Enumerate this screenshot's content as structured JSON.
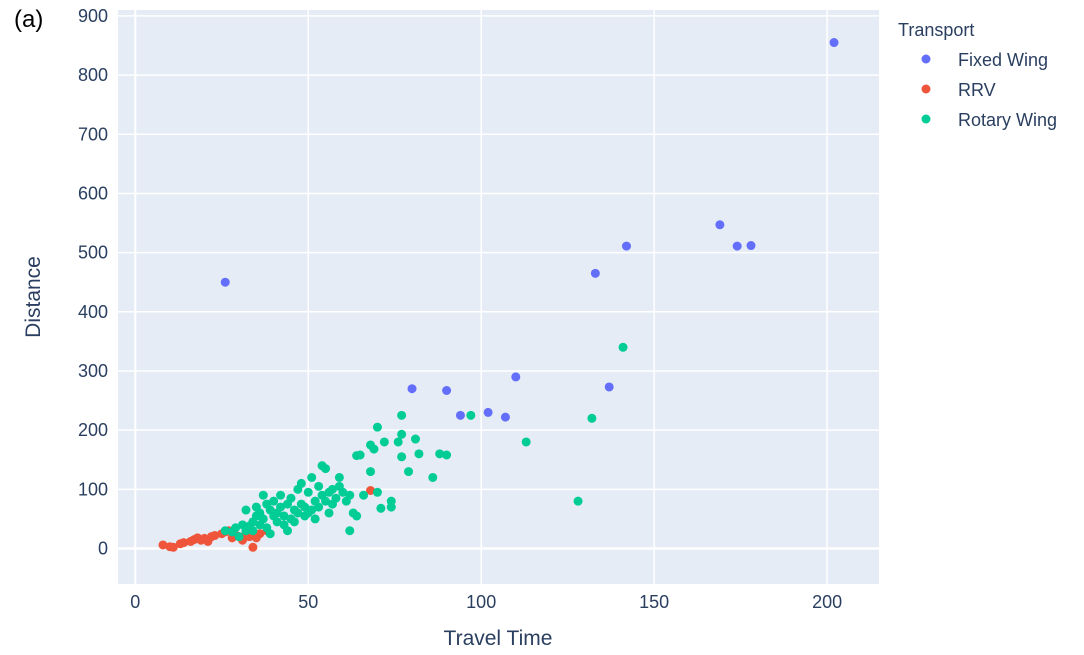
{
  "panel_label": "(a)",
  "chart_data": {
    "type": "scatter",
    "xlabel": "Travel Time",
    "ylabel": "Distance",
    "xlim": [
      -5,
      215
    ],
    "ylim": [
      -60,
      910
    ],
    "x_ticks": [
      0,
      50,
      100,
      150,
      200
    ],
    "y_ticks": [
      0,
      100,
      200,
      300,
      400,
      500,
      600,
      700,
      800,
      900
    ],
    "grid": true,
    "legend": {
      "title": "Transport",
      "position": "right"
    },
    "series": [
      {
        "name": "Fixed Wing",
        "color": "#636efa",
        "points": [
          [
            26,
            450
          ],
          [
            80,
            270
          ],
          [
            90,
            267
          ],
          [
            94,
            225
          ],
          [
            102,
            230
          ],
          [
            107,
            222
          ],
          [
            110,
            290
          ],
          [
            133,
            465
          ],
          [
            137,
            273
          ],
          [
            142,
            511
          ],
          [
            169,
            547
          ],
          [
            174,
            511
          ],
          [
            178,
            512
          ],
          [
            202,
            855
          ]
        ]
      },
      {
        "name": "RRV",
        "color": "#ef553b",
        "points": [
          [
            8,
            6
          ],
          [
            10,
            3
          ],
          [
            11,
            2
          ],
          [
            13,
            8
          ],
          [
            14,
            10
          ],
          [
            16,
            12
          ],
          [
            17,
            15
          ],
          [
            18,
            18
          ],
          [
            19,
            14
          ],
          [
            20,
            17
          ],
          [
            21,
            12
          ],
          [
            22,
            20
          ],
          [
            23,
            22
          ],
          [
            25,
            25
          ],
          [
            26,
            28
          ],
          [
            27,
            30
          ],
          [
            28,
            18
          ],
          [
            29,
            22
          ],
          [
            30,
            20
          ],
          [
            31,
            14
          ],
          [
            32,
            25
          ],
          [
            33,
            20
          ],
          [
            34,
            2
          ],
          [
            35,
            18
          ],
          [
            36,
            25
          ],
          [
            38,
            30
          ],
          [
            68,
            98
          ]
        ]
      },
      {
        "name": "Rotary Wing",
        "color": "#00cc96",
        "points": [
          [
            26,
            30
          ],
          [
            28,
            28
          ],
          [
            29,
            35
          ],
          [
            30,
            20
          ],
          [
            31,
            40
          ],
          [
            32,
            65
          ],
          [
            32,
            30
          ],
          [
            33,
            38
          ],
          [
            34,
            45
          ],
          [
            34,
            30
          ],
          [
            35,
            55
          ],
          [
            35,
            70
          ],
          [
            36,
            40
          ],
          [
            36,
            60
          ],
          [
            37,
            90
          ],
          [
            37,
            50
          ],
          [
            38,
            35
          ],
          [
            38,
            75
          ],
          [
            39,
            25
          ],
          [
            39,
            65
          ],
          [
            40,
            55
          ],
          [
            40,
            80
          ],
          [
            41,
            45
          ],
          [
            41,
            60
          ],
          [
            42,
            90
          ],
          [
            42,
            70
          ],
          [
            43,
            40
          ],
          [
            43,
            55
          ],
          [
            44,
            75
          ],
          [
            44,
            30
          ],
          [
            45,
            50
          ],
          [
            45,
            85
          ],
          [
            46,
            65
          ],
          [
            46,
            45
          ],
          [
            47,
            100
          ],
          [
            47,
            60
          ],
          [
            48,
            110
          ],
          [
            48,
            75
          ],
          [
            49,
            55
          ],
          [
            49,
            70
          ],
          [
            50,
            95
          ],
          [
            50,
            60
          ],
          [
            51,
            120
          ],
          [
            51,
            65
          ],
          [
            52,
            80
          ],
          [
            52,
            50
          ],
          [
            53,
            105
          ],
          [
            53,
            70
          ],
          [
            54,
            140
          ],
          [
            54,
            90
          ],
          [
            55,
            135
          ],
          [
            55,
            80
          ],
          [
            56,
            95
          ],
          [
            56,
            60
          ],
          [
            57,
            100
          ],
          [
            57,
            75
          ],
          [
            58,
            85
          ],
          [
            59,
            120
          ],
          [
            59,
            105
          ],
          [
            60,
            95
          ],
          [
            61,
            80
          ],
          [
            62,
            30
          ],
          [
            62,
            90
          ],
          [
            63,
            60
          ],
          [
            64,
            157
          ],
          [
            64,
            55
          ],
          [
            65,
            158
          ],
          [
            66,
            90
          ],
          [
            68,
            175
          ],
          [
            68,
            130
          ],
          [
            69,
            168
          ],
          [
            70,
            205
          ],
          [
            70,
            95
          ],
          [
            71,
            68
          ],
          [
            72,
            180
          ],
          [
            74,
            80
          ],
          [
            74,
            70
          ],
          [
            76,
            180
          ],
          [
            77,
            225
          ],
          [
            77,
            193
          ],
          [
            77,
            155
          ],
          [
            79,
            130
          ],
          [
            81,
            185
          ],
          [
            82,
            160
          ],
          [
            86,
            120
          ],
          [
            88,
            160
          ],
          [
            90,
            158
          ],
          [
            97,
            225
          ],
          [
            113,
            180
          ],
          [
            128,
            80
          ],
          [
            132,
            220
          ],
          [
            141,
            340
          ]
        ]
      }
    ]
  }
}
